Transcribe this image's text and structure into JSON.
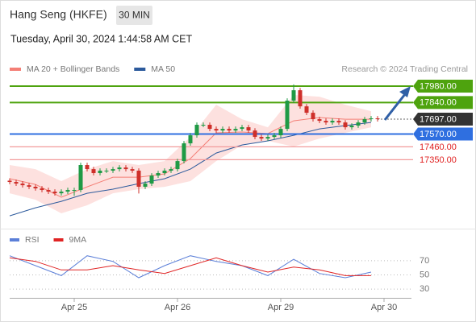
{
  "chart_data": [
    {
      "type": "candlestick",
      "title": "Hang Seng (HKFE)",
      "timeframe": "30 MIN",
      "subtitle": "Tuesday, April 30, 2024 1:44:58 AM CET",
      "source": "Research © 2024 Trading Central",
      "up_color": "#1f9a45",
      "down_color": "#cf2f2a",
      "xlim": [
        0,
        62.25
      ],
      "ylim": [
        16766,
        18063
      ],
      "open": [
        17170,
        17159,
        17145,
        17131,
        17118,
        17104,
        17090,
        17076,
        17062,
        17076,
        17090,
        17090,
        17304,
        17269,
        17235,
        17256,
        17256,
        17269,
        17283,
        17269,
        17256,
        17118,
        17145,
        17214,
        17235,
        17256,
        17269,
        17338,
        17490,
        17559,
        17649,
        17649,
        17614,
        17600,
        17614,
        17600,
        17614,
        17628,
        17600,
        17545,
        17531,
        17545,
        17559,
        17614,
        17856,
        17945,
        17807,
        17752,
        17697,
        17683,
        17669,
        17683,
        17669,
        17628,
        17642,
        17669,
        17697,
        17704
      ],
      "high": [
        17190,
        17179,
        17165,
        17151,
        17138,
        17124,
        17110,
        17096,
        17096,
        17110,
        17110,
        17324,
        17324,
        17289,
        17276,
        17276,
        17289,
        17303,
        17303,
        17289,
        17276,
        17165,
        17234,
        17255,
        17276,
        17289,
        17358,
        17510,
        17579,
        17669,
        17669,
        17669,
        17634,
        17634,
        17634,
        17634,
        17648,
        17648,
        17620,
        17565,
        17565,
        17579,
        17634,
        17876,
        17995,
        17965,
        17827,
        17772,
        17717,
        17703,
        17703,
        17703,
        17689,
        17662,
        17689,
        17717,
        17724,
        17724
      ],
      "low": [
        17139,
        17125,
        17111,
        17098,
        17084,
        17070,
        17056,
        17042,
        17042,
        17056,
        17040,
        17070,
        17249,
        17215,
        17215,
        17236,
        17236,
        17249,
        17249,
        17236,
        17060,
        17098,
        17125,
        17194,
        17215,
        17236,
        17249,
        17318,
        17470,
        17539,
        17629,
        17594,
        17580,
        17580,
        17580,
        17580,
        17594,
        17580,
        17525,
        17511,
        17511,
        17525,
        17539,
        17594,
        17836,
        17787,
        17732,
        17677,
        17663,
        17649,
        17649,
        17649,
        17608,
        17608,
        17622,
        17649,
        17677,
        17677
      ],
      "close": [
        17159,
        17145,
        17131,
        17118,
        17104,
        17090,
        17076,
        17062,
        17076,
        17090,
        17090,
        17304,
        17269,
        17235,
        17256,
        17256,
        17269,
        17283,
        17269,
        17256,
        17118,
        17145,
        17214,
        17235,
        17256,
        17269,
        17338,
        17490,
        17559,
        17649,
        17649,
        17614,
        17600,
        17614,
        17600,
        17614,
        17628,
        17600,
        17545,
        17531,
        17545,
        17559,
        17614,
        17856,
        17945,
        17807,
        17752,
        17697,
        17683,
        17669,
        17683,
        17669,
        17628,
        17642,
        17669,
        17697,
        17704,
        17697
      ],
      "series": [
        {
          "name": "MA 20 + Bollinger Bands",
          "color": "#f47f76",
          "band_color": "#fde1df",
          "x": [
            0,
            4,
            8,
            12,
            16,
            20,
            24,
            28,
            32,
            36,
            40,
            44,
            48,
            52,
            56
          ],
          "values": [
            17187,
            17138,
            17028,
            17117,
            17200,
            17200,
            17228,
            17359,
            17580,
            17587,
            17573,
            17683,
            17711,
            17697,
            17697
          ],
          "upper": [
            17304,
            17269,
            17166,
            17269,
            17338,
            17304,
            17338,
            17545,
            17821,
            17697,
            17628,
            17904,
            17890,
            17821,
            17766
          ],
          "lower": [
            17062,
            17007,
            16890,
            16959,
            17062,
            17097,
            17117,
            17166,
            17338,
            17476,
            17511,
            17462,
            17531,
            17580,
            17628
          ]
        },
        {
          "name": "MA 50",
          "color": "#2c5a9c",
          "x": [
            0,
            4,
            8,
            12,
            16,
            20,
            24,
            28,
            32,
            36,
            40,
            44,
            48,
            52,
            56
          ],
          "values": [
            16869,
            16938,
            16993,
            17062,
            17097,
            17145,
            17187,
            17269,
            17407,
            17476,
            17511,
            17559,
            17614,
            17642,
            17669
          ]
        }
      ],
      "levels": [
        {
          "value": 17980,
          "label": "17980.00",
          "color": "#4ea30e",
          "boxed": true,
          "dotted": false
        },
        {
          "value": 17840,
          "label": "17840.00",
          "color": "#4ea30e",
          "boxed": true,
          "dotted": false
        },
        {
          "value": 17697,
          "label": "17697.00",
          "color": "#333333",
          "boxed": true,
          "dotted": true
        },
        {
          "value": 17570,
          "label": "17570.00",
          "color": "#2f6fe0",
          "boxed": true,
          "dotted": false
        },
        {
          "value": 17460,
          "label": "17460.00",
          "color": "#f29a9a",
          "boxed": false,
          "dotted": false
        },
        {
          "value": 17350,
          "label": "17350.00",
          "color": "#f29a9a",
          "boxed": false,
          "dotted": false
        }
      ]
    },
    {
      "type": "line",
      "xlim": [
        0,
        62.25
      ],
      "ylim": [
        20,
        97
      ],
      "yticks": [
        70,
        50,
        30
      ],
      "xticks": [
        {
          "value": 10,
          "label": "Apr 25"
        },
        {
          "value": 26,
          "label": "Apr 26"
        },
        {
          "value": 42,
          "label": "Apr 29"
        },
        {
          "value": 58,
          "label": "Apr 30"
        }
      ],
      "series": [
        {
          "name": "RSI",
          "color": "#5b7fd8",
          "x": [
            0,
            4,
            8,
            12,
            16,
            20,
            24,
            28,
            32,
            36,
            40,
            44,
            48,
            52,
            56
          ],
          "values": [
            77,
            63,
            49,
            77,
            69,
            46,
            63,
            77,
            69,
            63,
            49,
            72,
            52,
            46,
            54
          ]
        },
        {
          "name": "9MA",
          "color": "#e02424",
          "x": [
            0,
            4,
            8,
            12,
            16,
            20,
            24,
            28,
            32,
            36,
            40,
            44,
            48,
            52,
            56
          ],
          "values": [
            74,
            69,
            57,
            57,
            63,
            57,
            52,
            63,
            74,
            63,
            54,
            61,
            57,
            49,
            49
          ]
        }
      ]
    }
  ]
}
